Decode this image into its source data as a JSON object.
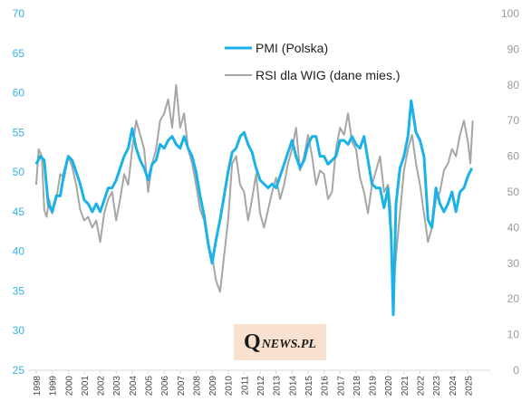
{
  "chart_data": {
    "type": "line",
    "title": "",
    "legend": {
      "placement": "top-center",
      "entries": [
        {
          "name": "PMI (Polska)",
          "color": "#1ab2e8",
          "axis": "left"
        },
        {
          "name": "RSI dla WIG (dane mies.)",
          "color": "#a6a6a6",
          "axis": "right"
        }
      ]
    },
    "x_axis": {
      "range": [
        1998.0,
        2025.6
      ],
      "tick_labels": [
        "1998",
        "1999",
        "2000",
        "2001",
        "2002",
        "2003",
        "2004",
        "2005",
        "2006",
        "2007",
        "2008",
        "2009",
        "2010",
        "2011",
        "2012",
        "2013",
        "2014",
        "2015",
        "2016",
        "2017",
        "2018",
        "2019",
        "2020",
        "2021",
        "2022",
        "2023",
        "2024",
        "2025"
      ],
      "rotated": true
    },
    "y_left": {
      "range": [
        25,
        70
      ],
      "ticks": [
        "25",
        "30",
        "35",
        "40",
        "45",
        "50",
        "55",
        "60",
        "65",
        "70"
      ]
    },
    "y_right": {
      "range": [
        0,
        100
      ],
      "ticks": [
        "0",
        "10",
        "20",
        "30",
        "40",
        "50",
        "60",
        "70",
        "80",
        "90",
        "100"
      ]
    },
    "grid": false,
    "series": [
      {
        "name": "PMI (Polska)",
        "axis": "left",
        "color": "#1ab2e8",
        "x": [
          1998.0,
          1998.25,
          1998.5,
          1998.75,
          1999.0,
          1999.25,
          1999.5,
          1999.75,
          2000.0,
          2000.25,
          2000.5,
          2000.75,
          2001.0,
          2001.25,
          2001.5,
          2001.75,
          2002.0,
          2002.25,
          2002.5,
          2002.75,
          2003.0,
          2003.25,
          2003.5,
          2003.75,
          2004.0,
          2004.25,
          2004.5,
          2004.75,
          2005.0,
          2005.25,
          2005.5,
          2005.75,
          2006.0,
          2006.25,
          2006.5,
          2006.75,
          2007.0,
          2007.25,
          2007.5,
          2007.75,
          2008.0,
          2008.25,
          2008.5,
          2008.75,
          2009.0,
          2009.25,
          2009.5,
          2009.75,
          2010.0,
          2010.25,
          2010.5,
          2010.75,
          2011.0,
          2011.25,
          2011.5,
          2011.75,
          2012.0,
          2012.25,
          2012.5,
          2012.75,
          2013.0,
          2013.25,
          2013.5,
          2013.75,
          2014.0,
          2014.25,
          2014.5,
          2014.75,
          2015.0,
          2015.25,
          2015.5,
          2015.75,
          2016.0,
          2016.25,
          2016.5,
          2016.75,
          2017.0,
          2017.25,
          2017.5,
          2017.75,
          2018.0,
          2018.25,
          2018.5,
          2018.75,
          2019.0,
          2019.25,
          2019.5,
          2019.75,
          2020.0,
          2020.2,
          2020.33,
          2020.5,
          2020.75,
          2021.0,
          2021.25,
          2021.45,
          2021.6,
          2021.75,
          2022.0,
          2022.25,
          2022.5,
          2022.75,
          2023.0,
          2023.25,
          2023.5,
          2023.75,
          2024.0,
          2024.25,
          2024.5,
          2024.75,
          2025.0,
          2025.25
        ],
        "y": [
          51.0,
          52.0,
          51.5,
          46.0,
          45.0,
          47.0,
          47.0,
          50.0,
          52.0,
          51.5,
          50.0,
          48.5,
          46.5,
          46.0,
          45.0,
          46.0,
          45.0,
          46.5,
          48.0,
          48.0,
          49.0,
          50.5,
          52.0,
          53.0,
          55.5,
          53.0,
          51.5,
          50.5,
          49.0,
          51.0,
          51.5,
          53.5,
          53.0,
          54.0,
          54.5,
          53.5,
          53.0,
          54.5,
          53.0,
          52.0,
          50.0,
          47.0,
          44.5,
          41.0,
          38.5,
          41.5,
          44.0,
          47.0,
          50.0,
          52.5,
          53.0,
          54.5,
          55.0,
          53.5,
          52.5,
          50.5,
          49.0,
          48.5,
          48.0,
          48.5,
          48.0,
          49.5,
          51.0,
          52.5,
          54.0,
          52.0,
          50.5,
          51.5,
          53.5,
          54.5,
          54.5,
          52.0,
          52.0,
          51.0,
          51.5,
          52.0,
          54.0,
          54.0,
          53.5,
          54.5,
          53.5,
          53.0,
          54.5,
          51.5,
          48.5,
          48.0,
          48.0,
          45.5,
          48.0,
          42.0,
          32.0,
          46.0,
          50.5,
          52.0,
          54.5,
          59.0,
          57.0,
          55.0,
          54.0,
          52.0,
          44.0,
          43.0,
          48.0,
          46.0,
          45.0,
          46.0,
          47.5,
          45.0,
          47.5,
          48.0,
          49.5,
          50.5
        ]
      },
      {
        "name": "RSI dla WIG (dane mies.)",
        "axis": "right",
        "color": "#a6a6a6",
        "x": [
          1998.0,
          1998.15,
          1998.35,
          1998.5,
          1998.65,
          1998.8,
          1999.0,
          1999.25,
          1999.5,
          1999.75,
          2000.0,
          2000.25,
          2000.5,
          2000.75,
          2001.0,
          2001.25,
          2001.5,
          2001.75,
          2002.0,
          2002.25,
          2002.5,
          2002.75,
          2003.0,
          2003.25,
          2003.5,
          2003.75,
          2004.0,
          2004.25,
          2004.5,
          2004.75,
          2005.0,
          2005.25,
          2005.5,
          2005.75,
          2006.0,
          2006.25,
          2006.5,
          2006.75,
          2007.0,
          2007.25,
          2007.5,
          2007.75,
          2008.0,
          2008.25,
          2008.5,
          2008.75,
          2009.0,
          2009.25,
          2009.5,
          2009.75,
          2010.0,
          2010.25,
          2010.5,
          2010.75,
          2011.0,
          2011.25,
          2011.5,
          2011.75,
          2012.0,
          2012.25,
          2012.5,
          2012.75,
          2013.0,
          2013.25,
          2013.5,
          2013.75,
          2014.0,
          2014.25,
          2014.5,
          2014.75,
          2015.0,
          2015.25,
          2015.5,
          2015.75,
          2016.0,
          2016.25,
          2016.5,
          2016.75,
          2017.0,
          2017.25,
          2017.5,
          2017.75,
          2018.0,
          2018.25,
          2018.5,
          2018.75,
          2019.0,
          2019.25,
          2019.5,
          2019.75,
          2020.0,
          2020.15,
          2020.3,
          2020.5,
          2020.75,
          2021.0,
          2021.25,
          2021.5,
          2021.75,
          2022.0,
          2022.25,
          2022.5,
          2022.75,
          2023.0,
          2023.25,
          2023.5,
          2023.75,
          2024.0,
          2024.25,
          2024.5,
          2024.75,
          2025.0,
          2025.15,
          2025.3
        ],
        "y": [
          52,
          62,
          60,
          45,
          43,
          48,
          44,
          48,
          55,
          54,
          60,
          57,
          52,
          45,
          42,
          43,
          40,
          42,
          36,
          44,
          48,
          50,
          42,
          48,
          55,
          52,
          62,
          70,
          66,
          62,
          50,
          58,
          62,
          70,
          72,
          76,
          68,
          80,
          68,
          72,
          62,
          58,
          52,
          45,
          42,
          35,
          32,
          25,
          22,
          32,
          42,
          58,
          60,
          52,
          50,
          42,
          48,
          55,
          44,
          40,
          45,
          50,
          54,
          48,
          52,
          58,
          62,
          68,
          56,
          60,
          66,
          60,
          52,
          56,
          55,
          48,
          50,
          62,
          68,
          66,
          72,
          64,
          62,
          54,
          50,
          44,
          52,
          56,
          60,
          50,
          52,
          46,
          20,
          32,
          44,
          56,
          62,
          66,
          58,
          52,
          44,
          36,
          40,
          48,
          50,
          56,
          58,
          62,
          60,
          66,
          70,
          64,
          58,
          70
        ]
      }
    ]
  },
  "watermark": {
    "logo_text": "QNEWS.PL"
  }
}
